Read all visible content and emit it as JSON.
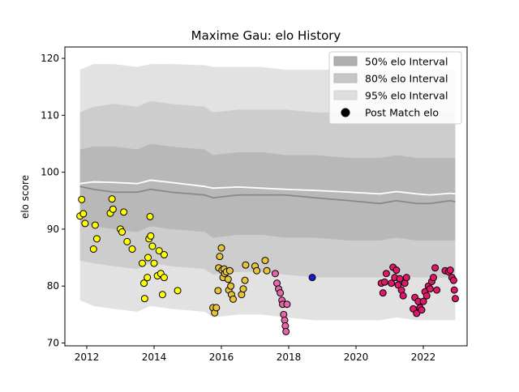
{
  "chart_data": {
    "type": "scatter",
    "title": "Maxime Gau: elo History",
    "xlabel": "",
    "ylabel": "elo score",
    "xlim": [
      2011.35,
      2023.3
    ],
    "ylim": [
      69.5,
      122
    ],
    "xticks": [
      2012,
      2014,
      2016,
      2018,
      2020,
      2022
    ],
    "xtick_labels": [
      "2012",
      "2014",
      "2016",
      "2018",
      "2020",
      "2022"
    ],
    "yticks": [
      70,
      80,
      90,
      100,
      110,
      120
    ],
    "ytick_labels": [
      "70",
      "80",
      "90",
      "100",
      "110",
      "120"
    ],
    "grid": false,
    "legend_position": "top-right",
    "legend": [
      {
        "label": "50% elo Interval",
        "kind": "band50"
      },
      {
        "label": "80% elo Interval",
        "kind": "band80"
      },
      {
        "label": "95% elo Interval",
        "kind": "band95"
      },
      {
        "label": "Post Match elo",
        "kind": "marker"
      }
    ],
    "colors": {
      "band95": "#e2e2e2",
      "band80": "#cdcdcd",
      "band50": "#b8b8b8",
      "mean_line": "#888888",
      "white_line": "#ffffff",
      "marker_edge": "#000000"
    },
    "bands": {
      "x": [
        2011.8,
        2012.2,
        2012.8,
        2013.5,
        2013.9,
        2014.5,
        2015.5,
        2015.75,
        2016.5,
        2017.2,
        2017.9,
        2018.8,
        2019.8,
        2020.7,
        2021.2,
        2021.8,
        2022.2,
        2022.8,
        2022.95
      ],
      "p95_hi": [
        118,
        119,
        119,
        118.5,
        119,
        119,
        118.8,
        118.5,
        118.5,
        118.5,
        118,
        118,
        118,
        118,
        118,
        118,
        118,
        118,
        118
      ],
      "p80_hi": [
        110.5,
        111.5,
        112,
        111.5,
        112.5,
        112,
        111.5,
        110.5,
        111,
        111,
        111,
        110.5,
        110.5,
        110.5,
        111,
        110.5,
        110.5,
        110.5,
        110.5
      ],
      "p50_hi": [
        104,
        104.5,
        104.5,
        104,
        105,
        104.5,
        104,
        103,
        103.5,
        103.5,
        103,
        103,
        102.5,
        102.5,
        103,
        102.5,
        102.5,
        102.5,
        102.5
      ],
      "mean": [
        97.5,
        97,
        96.5,
        96.5,
        97,
        96.5,
        96,
        95.5,
        96,
        96,
        96,
        95.5,
        95,
        94.5,
        95,
        94.5,
        94.5,
        95,
        94.8
      ],
      "white": [
        98,
        98.3,
        98.2,
        98,
        98.6,
        98.2,
        97.5,
        97.2,
        97.4,
        97.2,
        97,
        96.8,
        96.5,
        96.2,
        96.6,
        96.2,
        96,
        96.3,
        96.2
      ],
      "p50_lo": [
        91,
        90.5,
        90,
        89.5,
        90.5,
        90,
        89.5,
        88.5,
        89,
        89,
        88.5,
        88.5,
        88,
        88,
        88.5,
        88,
        88,
        88,
        88
      ],
      "p80_lo": [
        84.5,
        84,
        83.5,
        83,
        84,
        83.5,
        83,
        82,
        82.5,
        82.5,
        82,
        81.5,
        81.5,
        81.5,
        82,
        81.5,
        81.5,
        81.5,
        81.5
      ],
      "p95_lo": [
        77.5,
        76.5,
        76,
        75.5,
        76.5,
        76,
        75.5,
        74.5,
        75,
        75,
        74.5,
        74,
        74,
        74,
        74.5,
        74,
        74,
        74,
        74
      ]
    },
    "series": [
      {
        "color": "#ffff00",
        "x": [
          2011.8,
          2011.85,
          2011.9,
          2011.95,
          2012.25,
          2012.3,
          2012.2,
          2012.7,
          2012.75,
          2012.78,
          2013.0,
          2013.05,
          2013.1,
          2013.2,
          2013.35,
          2013.65,
          2013.7,
          2013.72,
          2013.8,
          2013.82,
          2013.85,
          2013.88,
          2013.9,
          2013.95,
          2014.0,
          2014.1,
          2014.15,
          2014.2,
          2014.25,
          2014.3,
          2014.3,
          2014.7
        ],
        "y": [
          92.3,
          95.2,
          92.7,
          91,
          90.7,
          88.3,
          86.5,
          92.8,
          95.3,
          93.5,
          90,
          89.5,
          93,
          87.8,
          86.5,
          84,
          80.5,
          77.8,
          81.5,
          85,
          88.3,
          92.2,
          88.8,
          87,
          84,
          81.8,
          86.2,
          82.2,
          78.5,
          81.5,
          85.5,
          79.2
        ]
      },
      {
        "color": "#e8c43a",
        "x": [
          2015.75,
          2015.8,
          2015.85,
          2015.9,
          2015.92,
          2015.95,
          2016.0,
          2016.02,
          2016.05,
          2016.08,
          2016.1,
          2016.15,
          2016.2,
          2016.22,
          2016.25,
          2016.28,
          2016.3,
          2016.35,
          2016.6,
          2016.65,
          2016.7,
          2016.72,
          2017.0,
          2017.05,
          2017.3,
          2017.35
        ],
        "y": [
          76.2,
          75.3,
          76.2,
          79.2,
          83.2,
          85.2,
          86.7,
          82.8,
          81.5,
          83,
          82.2,
          82.5,
          81.2,
          79.3,
          82.7,
          80,
          78.5,
          77.7,
          78.5,
          79.5,
          81,
          83.7,
          83.5,
          82.7,
          84.5,
          82.7
        ]
      },
      {
        "color": "#e266a8",
        "x": [
          2017.6,
          2017.65,
          2017.7,
          2017.75,
          2017.8,
          2017.82,
          2017.85,
          2017.88,
          2017.9,
          2017.92,
          2017.95
        ],
        "y": [
          82.2,
          80.5,
          79.5,
          78.8,
          77.5,
          76.8,
          75,
          74,
          73,
          72,
          76.8
        ]
      },
      {
        "color": "#1a1ad6",
        "x": [
          2018.7
        ],
        "y": [
          81.5
        ]
      },
      {
        "color": "#e0176a",
        "x": [
          2020.75,
          2020.8,
          2020.85,
          2020.9,
          2021.05,
          2021.1,
          2021.15,
          2021.2,
          2021.25,
          2021.3,
          2021.35,
          2021.4,
          2021.45,
          2021.5,
          2021.7,
          2021.75,
          2021.8,
          2021.85,
          2021.9,
          2021.95,
          2022.0,
          2022.05,
          2022.1,
          2022.15,
          2022.2,
          2022.25,
          2022.3,
          2022.35,
          2022.4,
          2022.65,
          2022.75,
          2022.8,
          2022.85,
          2022.9,
          2022.92,
          2022.95
        ],
        "y": [
          80.5,
          78.8,
          80.7,
          82.2,
          80.5,
          83.3,
          81.5,
          82.8,
          80.2,
          81.3,
          79.3,
          78.3,
          80.5,
          81.5,
          76,
          78,
          75.2,
          77.3,
          76.2,
          75.8,
          77.3,
          79,
          78.3,
          80,
          79.5,
          80.8,
          81.5,
          83.2,
          79.3,
          82.7,
          82.5,
          82.8,
          81.5,
          81,
          79.3,
          77.8
        ]
      }
    ]
  }
}
